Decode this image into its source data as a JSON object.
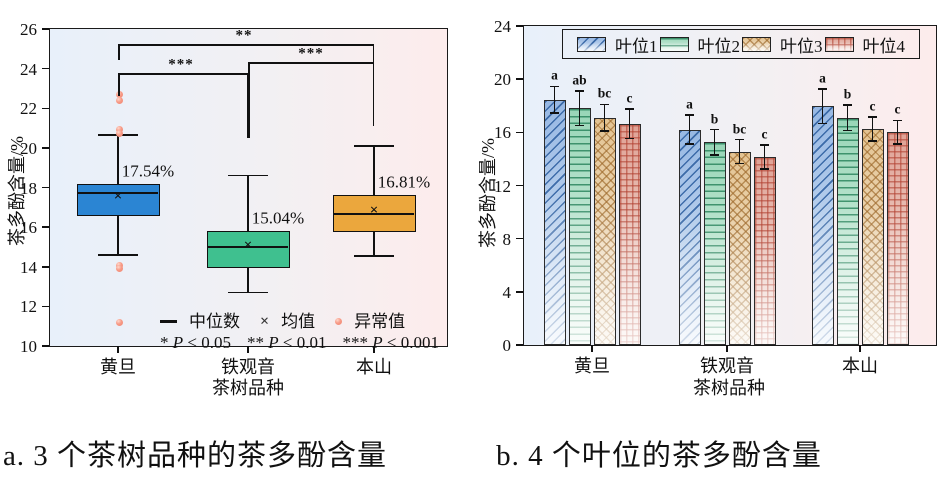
{
  "captions": {
    "a": "a. 3 个茶树品种的茶多酚含量",
    "b": "b. 4 个叶位的茶多酚含量"
  },
  "colors": {
    "bg_gradient_left": "#e8f0fa",
    "bg_gradient_right": "#fdecec",
    "box_huangdan": "#2b85d3",
    "box_tieguanyin": "#3fc08f",
    "box_benshan": "#eba73d",
    "outlier": "#f58f7b",
    "bar_leaf1": "#6f9ed8",
    "bar_leaf2": "#8ecfaf",
    "bar_leaf3": "#dcb580",
    "bar_leaf4": "#cf8176"
  },
  "chart_data": [
    {
      "type": "boxplot",
      "xlabel": "茶树品种",
      "ylabel": "茶多酚含量/%",
      "ylim": [
        10,
        26
      ],
      "yticks": [
        26,
        24,
        22,
        20,
        18,
        16,
        14,
        12,
        10
      ],
      "categories": [
        "黄旦",
        "铁观音",
        "本山"
      ],
      "boxes": [
        {
          "name": "黄旦",
          "whisker_low": 14.6,
          "q1": 16.55,
          "median": 17.7,
          "q3": 18.2,
          "whisker_high": 20.65,
          "mean": 17.54,
          "mean_label": "17.54%",
          "outliers": [
            22.7,
            22.4,
            20.95,
            20.75,
            14.05,
            13.9,
            11.2
          ],
          "color": "#2b85d3"
        },
        {
          "name": "铁观音",
          "whisker_low": 12.7,
          "q1": 13.95,
          "median": 15.0,
          "q3": 15.8,
          "whisker_high": 18.6,
          "mean": 15.04,
          "mean_label": "15.04%",
          "outliers": [],
          "color": "#3fc08f"
        },
        {
          "name": "本山",
          "whisker_low": 14.55,
          "q1": 15.75,
          "median": 16.65,
          "q3": 17.6,
          "whisker_high": 20.1,
          "mean": 16.81,
          "mean_label": "16.81%",
          "outliers": [],
          "color": "#eba73d"
        }
      ],
      "significance": [
        {
          "label": "**",
          "pair": [
            "黄旦",
            "本山"
          ]
        },
        {
          "label": "***",
          "pair": [
            "铁观音",
            "本山"
          ]
        },
        {
          "label": "***",
          "pair": [
            "黄旦",
            "铁观音"
          ]
        }
      ],
      "legend": {
        "median_label": "中位数",
        "mean_label": "均值",
        "outlier_label": "异常值",
        "p1": "* P < 0.05",
        "p2": "** P < 0.01",
        "p3": "*** P < 0.001"
      }
    },
    {
      "type": "bar",
      "xlabel": "茶树品种",
      "ylabel": "茶多酚含量/%",
      "ylim": [
        0,
        24
      ],
      "yticks": [
        24,
        20,
        16,
        12,
        8,
        4,
        0
      ],
      "categories": [
        "黄旦",
        "铁观音",
        "本山"
      ],
      "series": [
        {
          "name": "叶位1",
          "values": [
            18.45,
            16.2,
            17.95
          ],
          "errors": [
            1.0,
            1.1,
            1.3
          ],
          "letters": [
            "a",
            "a",
            "a"
          ],
          "color": "#6f9ed8"
        },
        {
          "name": "叶位2",
          "values": [
            17.8,
            15.25,
            17.1
          ],
          "errors": [
            1.3,
            0.95,
            0.95
          ],
          "letters": [
            "ab",
            "b",
            "b"
          ],
          "color": "#8ecfaf"
        },
        {
          "name": "叶位3",
          "values": [
            17.1,
            14.55,
            16.25
          ],
          "errors": [
            1.0,
            0.9,
            0.9
          ],
          "letters": [
            "bc",
            "bc",
            "c"
          ],
          "color": "#dcb580"
        },
        {
          "name": "叶位4",
          "values": [
            16.65,
            14.15,
            16.0
          ],
          "errors": [
            1.1,
            0.9,
            0.9
          ],
          "letters": [
            "c",
            "c",
            "c"
          ],
          "color": "#cf8176"
        }
      ],
      "legend_position": "top"
    }
  ]
}
